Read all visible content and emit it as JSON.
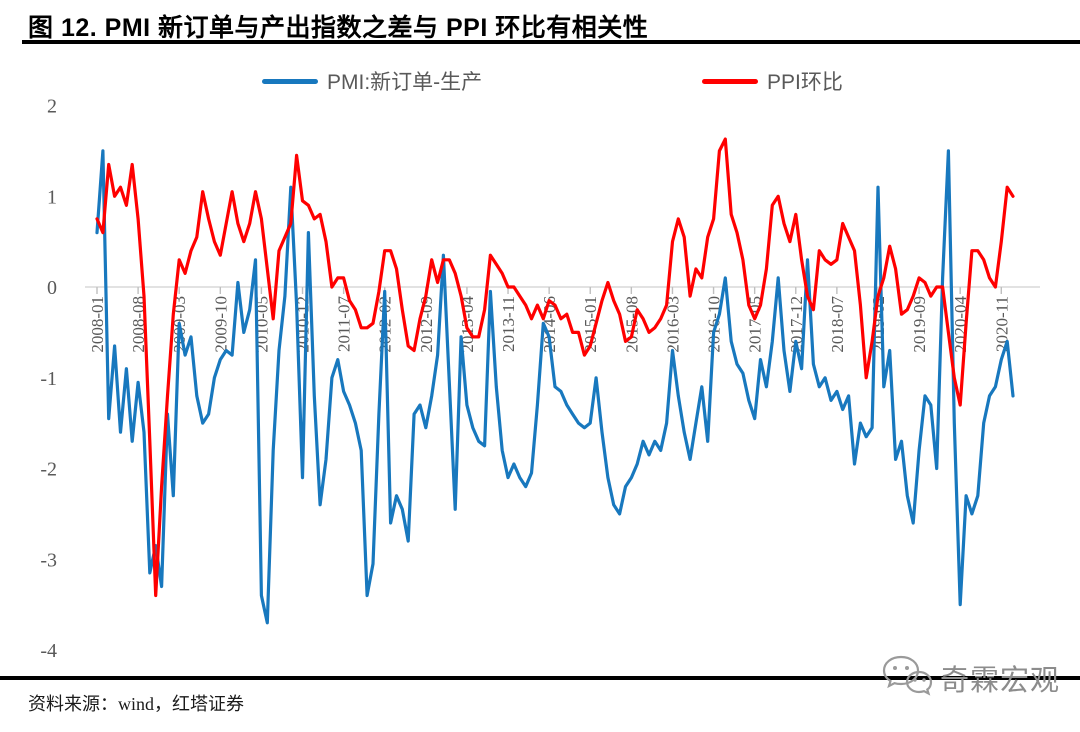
{
  "title": "图 12. PMI 新订单与产出指数之差与 PPI 环比有相关性",
  "source_note": "资料来源：wind，红塔证券",
  "watermark": {
    "brand": "奇霖宏观",
    "icon": "wechat-chat-bubbles-icon"
  },
  "colors": {
    "pmi_blue": "#1878BE",
    "ppi_red": "#FF0000",
    "axis_label_gray": "#595959",
    "zero_line_gray": "#d9d9d9",
    "rule_black": "#000000",
    "watermark_gray": "#8c8c8c"
  },
  "chart_data": {
    "type": "line",
    "title": "图 12. PMI 新订单与产出指数之差与 PPI 环比有相关性",
    "x_start": "2008-01",
    "x_end": "2021-01",
    "x_frequency": "monthly",
    "x_tick_every_n_months": 7,
    "x_tick_labels": [
      "2008-01",
      "2008-08",
      "2009-03",
      "2009-10",
      "2010-05",
      "2010-12",
      "2011-07",
      "2012-02",
      "2012-09",
      "2013-04",
      "2013-11",
      "2014-06",
      "2015-01",
      "2015-08",
      "2016-03",
      "2016-10",
      "2017-05",
      "2017-12",
      "2018-07",
      "2019-02",
      "2019-09",
      "2020-04",
      "2020-11"
    ],
    "y_ticks": [
      2,
      1,
      0,
      -1,
      -2,
      -3,
      -4
    ],
    "ylim": [
      -4,
      2
    ],
    "grid": "zero-line-only",
    "legend_position": "top",
    "series": [
      {
        "name": "PMI:新订单-生产",
        "color": "#1878BE",
        "values": [
          0.6,
          1.5,
          -1.45,
          -0.65,
          -1.6,
          -0.9,
          -1.7,
          -1.05,
          -1.6,
          -3.15,
          -2.85,
          -3.3,
          -1.4,
          -2.3,
          -0.4,
          -0.75,
          -0.55,
          -1.2,
          -1.5,
          -1.4,
          -1.0,
          -0.8,
          -0.7,
          -0.75,
          0.05,
          -0.5,
          -0.25,
          0.3,
          -3.4,
          -3.7,
          -1.8,
          -0.7,
          -0.1,
          1.1,
          -0.2,
          -2.1,
          0.6,
          -1.2,
          -2.4,
          -1.9,
          -1.0,
          -0.8,
          -1.15,
          -1.3,
          -1.5,
          -1.8,
          -3.4,
          -3.05,
          -1.4,
          -0.05,
          -2.6,
          -2.3,
          -2.45,
          -2.8,
          -1.4,
          -1.3,
          -1.55,
          -1.2,
          -0.75,
          0.35,
          -1.05,
          -2.45,
          -0.55,
          -1.3,
          -1.55,
          -1.7,
          -1.75,
          -0.05,
          -1.1,
          -1.8,
          -2.1,
          -1.95,
          -2.1,
          -2.2,
          -2.05,
          -1.3,
          -0.4,
          -0.55,
          -1.1,
          -1.15,
          -1.3,
          -1.4,
          -1.5,
          -1.55,
          -1.5,
          -1.0,
          -1.6,
          -2.1,
          -2.4,
          -2.5,
          -2.2,
          -2.1,
          -1.95,
          -1.7,
          -1.85,
          -1.7,
          -1.8,
          -1.5,
          -0.7,
          -1.2,
          -1.6,
          -1.9,
          -1.5,
          -1.1,
          -1.7,
          -0.5,
          -0.3,
          0.1,
          -0.6,
          -0.85,
          -0.95,
          -1.25,
          -1.45,
          -0.8,
          -1.1,
          -0.6,
          0.1,
          -0.7,
          -1.15,
          -0.6,
          -0.9,
          0.3,
          -0.85,
          -1.1,
          -1.0,
          -1.25,
          -1.15,
          -1.35,
          -1.2,
          -1.95,
          -1.5,
          -1.65,
          -1.55,
          1.1,
          -1.1,
          -0.7,
          -1.9,
          -1.7,
          -2.3,
          -2.6,
          -1.8,
          -1.2,
          -1.3,
          -2.0,
          0.1,
          1.5,
          -1.5,
          -3.5,
          -2.3,
          -2.5,
          -2.3,
          -1.5,
          -1.2,
          -1.1,
          -0.8,
          -0.6,
          -1.2
        ]
      },
      {
        "name": "PPI环比",
        "color": "#FF0000",
        "values": [
          0.75,
          0.6,
          1.35,
          1.0,
          1.1,
          0.9,
          1.35,
          0.75,
          -0.1,
          -1.7,
          -3.4,
          -2.2,
          -1.2,
          -0.3,
          0.3,
          0.15,
          0.4,
          0.55,
          1.05,
          0.75,
          0.5,
          0.35,
          0.7,
          1.05,
          0.7,
          0.5,
          0.7,
          1.05,
          0.75,
          0.2,
          -0.35,
          0.4,
          0.55,
          0.7,
          1.45,
          0.95,
          0.9,
          0.75,
          0.8,
          0.5,
          0.0,
          0.1,
          0.1,
          -0.15,
          -0.25,
          -0.45,
          -0.45,
          -0.4,
          -0.05,
          0.4,
          0.4,
          0.2,
          -0.25,
          -0.65,
          -0.7,
          -0.35,
          -0.1,
          0.3,
          0.05,
          0.3,
          0.3,
          0.15,
          -0.1,
          -0.45,
          -0.55,
          -0.55,
          -0.25,
          0.35,
          0.25,
          0.15,
          0.0,
          0.0,
          -0.1,
          -0.2,
          -0.35,
          -0.2,
          -0.35,
          -0.15,
          -0.2,
          -0.35,
          -0.3,
          -0.5,
          -0.5,
          -0.75,
          -0.65,
          -0.4,
          -0.15,
          0.05,
          -0.15,
          -0.3,
          -0.6,
          -0.55,
          -0.25,
          -0.35,
          -0.5,
          -0.45,
          -0.35,
          -0.2,
          0.5,
          0.75,
          0.55,
          -0.1,
          0.2,
          0.1,
          0.55,
          0.75,
          1.5,
          1.63,
          0.8,
          0.6,
          0.3,
          -0.2,
          -0.35,
          -0.2,
          0.2,
          0.9,
          1.0,
          0.7,
          0.5,
          0.8,
          0.3,
          -0.1,
          -0.25,
          0.4,
          0.3,
          0.25,
          0.3,
          0.7,
          0.55,
          0.4,
          -0.2,
          -1.0,
          -0.6,
          -0.1,
          0.1,
          0.45,
          0.2,
          -0.3,
          -0.25,
          -0.1,
          0.1,
          0.05,
          -0.1,
          0.0,
          0.0,
          -0.5,
          -1.0,
          -1.3,
          -0.4,
          0.4,
          0.4,
          0.3,
          0.1,
          0.0,
          0.5,
          1.1,
          1.0
        ]
      }
    ]
  }
}
